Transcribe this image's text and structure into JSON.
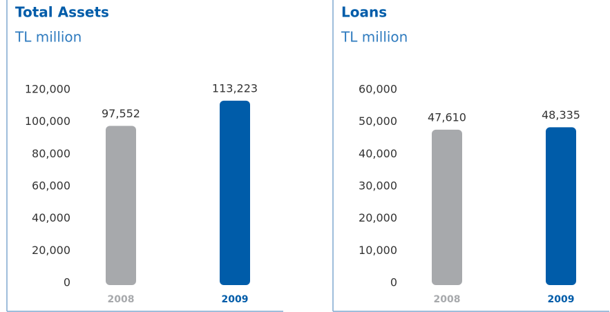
{
  "chart_data": [
    {
      "type": "bar",
      "title": "Total Assets",
      "subtitle": "TL million",
      "categories": [
        "2008",
        "2009"
      ],
      "values": [
        97552,
        113223
      ],
      "value_labels": [
        "97,552",
        "113,223"
      ],
      "colors": [
        "#a7a9ac",
        "#005ca9"
      ],
      "ylim": [
        0,
        120000
      ],
      "yticks": [
        0,
        {
          "value": 20000,
          "label": "20,000"
        },
        {
          "value": 40000,
          "label": "40,000"
        },
        {
          "value": 60000,
          "label": "60,000"
        },
        {
          "value": 80000,
          "label": "80,000"
        },
        {
          "value": 100000,
          "label": "100,000"
        },
        {
          "value": 120000,
          "label": "120,000"
        }
      ]
    },
    {
      "type": "bar",
      "title": "Loans",
      "subtitle": "TL million",
      "categories": [
        "2008",
        "2009"
      ],
      "values": [
        47610,
        48335
      ],
      "value_labels": [
        "47,610",
        "48,335"
      ],
      "colors": [
        "#a7a9ac",
        "#005ca9"
      ],
      "ylim": [
        0,
        60000
      ],
      "yticks": [
        0,
        {
          "value": 10000,
          "label": "10,000"
        },
        {
          "value": 20000,
          "label": "20,000"
        },
        {
          "value": 30000,
          "label": "30,000"
        },
        {
          "value": 40000,
          "label": "40,000"
        },
        {
          "value": 50000,
          "label": "50,000"
        },
        {
          "value": 60000,
          "label": "60,000"
        }
      ]
    }
  ]
}
